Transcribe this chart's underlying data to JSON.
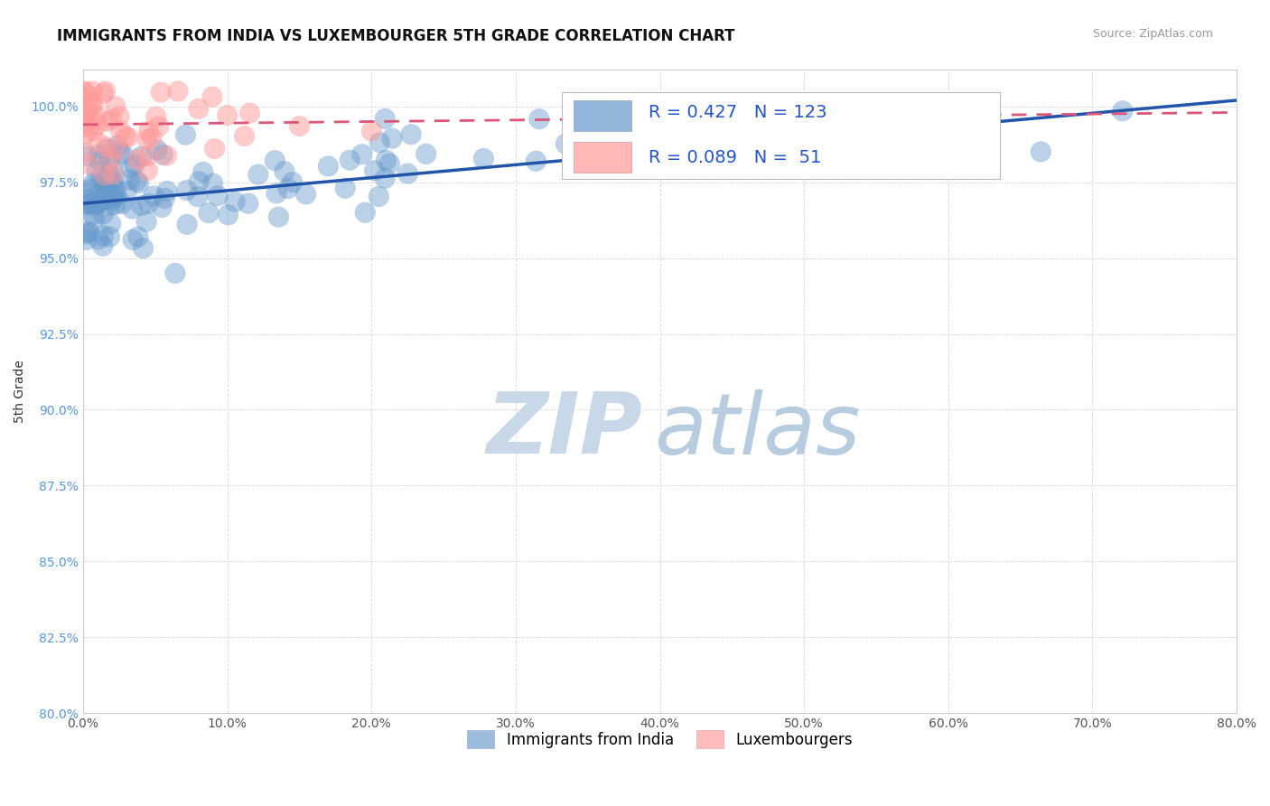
{
  "title": "IMMIGRANTS FROM INDIA VS LUXEMBOURGER 5TH GRADE CORRELATION CHART",
  "source_text": "Source: ZipAtlas.com",
  "ylabel": "5th Grade",
  "xlim": [
    0.0,
    80.0
  ],
  "ylim": [
    80.0,
    101.2
  ],
  "yticks": [
    80.0,
    82.5,
    85.0,
    87.5,
    90.0,
    92.5,
    95.0,
    97.5,
    100.0
  ],
  "ytick_labels": [
    "80.0%",
    "82.5%",
    "85.0%",
    "87.5%",
    "90.0%",
    "92.5%",
    "95.0%",
    "97.5%",
    "100.0%"
  ],
  "xticks": [
    0.0,
    10.0,
    20.0,
    30.0,
    40.0,
    50.0,
    60.0,
    70.0,
    80.0
  ],
  "xtick_labels": [
    "0.0%",
    "10.0%",
    "20.0%",
    "30.0%",
    "40.0%",
    "50.0%",
    "60.0%",
    "70.0%",
    "80.0%"
  ],
  "legend_blue_label": "Immigrants from India",
  "legend_pink_label": "Luxembourgers",
  "R_blue": 0.427,
  "N_blue": 123,
  "R_pink": 0.089,
  "N_pink": 51,
  "blue_color": "#6699CC",
  "pink_color": "#FF9999",
  "blue_line_color": "#2255AA",
  "pink_line_color": "#DD5577",
  "watermark_zip_color": "#C8D8E8",
  "watermark_atlas_color": "#B8CCE0",
  "background_color": "#FFFFFF",
  "title_fontsize": 12,
  "ylabel_fontsize": 10,
  "tick_fontsize": 10,
  "legend_fontsize": 13,
  "axis_color": "#CCCCCC",
  "ytick_color": "#5599EE",
  "xtick_color": "#555555",
  "grid_color": "#DDDDDD"
}
